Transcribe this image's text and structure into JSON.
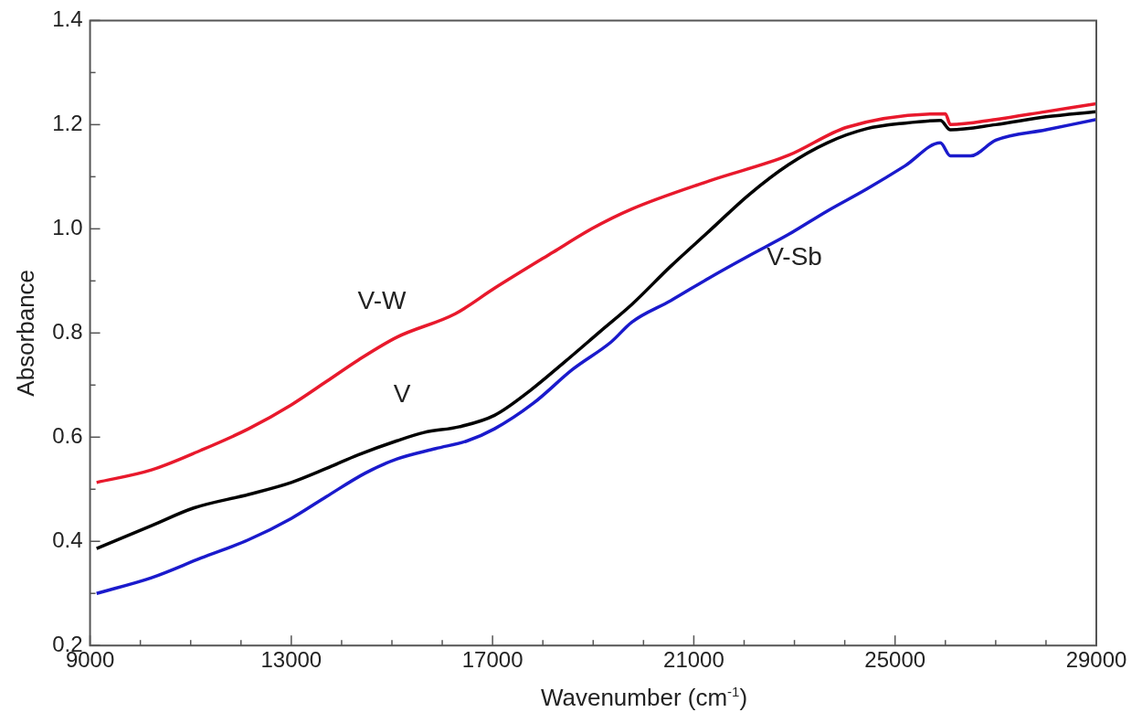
{
  "chart_data": {
    "type": "line",
    "xlabel": "Wavenumber (cm$^{-1}$)",
    "ylabel": "Absorbance",
    "xlim": [
      9000,
      29000
    ],
    "xticks": [
      9000,
      {
        "value": 10000,
        "label": null
      },
      {
        "value": 11000,
        "label": null
      },
      {
        "value": 12000,
        "label": null
      },
      13000,
      {
        "value": 14000,
        "label": null
      },
      {
        "value": 15000,
        "label": null
      },
      {
        "value": 16000,
        "label": null
      },
      17000,
      {
        "value": 18000,
        "label": null
      },
      {
        "value": 19000,
        "label": null
      },
      {
        "value": 20000,
        "label": null
      },
      21000,
      {
        "value": 22000,
        "label": null
      },
      {
        "value": 23000,
        "label": null
      },
      {
        "value": 24000,
        "label": null
      },
      25000,
      {
        "value": 26000,
        "label": null
      },
      {
        "value": 27000,
        "label": null
      },
      {
        "value": 28000,
        "label": null
      },
      29000
    ],
    "ylim": [
      0.2,
      1.4
    ],
    "yticks": [
      {
        "value": 0.2,
        "label": "0.2"
      },
      {
        "value": 0.3,
        "label": null
      },
      {
        "value": 0.4,
        "label": "0.4"
      },
      {
        "value": 0.5,
        "label": null
      },
      {
        "value": 0.6,
        "label": "0.6"
      },
      {
        "value": 0.7,
        "label": null
      },
      {
        "value": 0.8,
        "label": "0.8"
      },
      {
        "value": 0.9,
        "label": null
      },
      {
        "value": 1.0,
        "label": "1.0"
      },
      {
        "value": 1.1,
        "label": null
      },
      {
        "value": 1.2,
        "label": "1.2"
      },
      {
        "value": 1.3,
        "label": null
      },
      {
        "value": 1.4,
        "label": "1.4"
      }
    ],
    "grid": false,
    "legend": false,
    "marker": "none",
    "series": [
      {
        "color": "#e8192c",
        "x": [
          9130,
          10220,
          11210,
          12150,
          13000,
          13700,
          14330,
          15100,
          16260,
          17040,
          18200,
          18970,
          19770,
          21310,
          22880,
          24040,
          26000,
          26100,
          27000,
          28000,
          29000
        ],
        "values": [
          0.513,
          0.537,
          0.575,
          0.616,
          0.662,
          0.707,
          0.748,
          0.792,
          0.837,
          0.886,
          0.955,
          1.0,
          1.038,
          1.092,
          1.141,
          1.195,
          1.221,
          1.2,
          1.21,
          1.225,
          1.24
        ]
      },
      {
        "color": "#000000",
        "x": [
          9130,
          10220,
          11060,
          12150,
          13000,
          13700,
          14330,
          15100,
          15640,
          16340,
          17040,
          17740,
          18440,
          19140,
          19770,
          20540,
          21310,
          22090,
          22880,
          23650,
          24430,
          25200,
          25900,
          26100,
          27000,
          28000,
          29000
        ],
        "values": [
          0.386,
          0.43,
          0.464,
          0.49,
          0.513,
          0.54,
          0.566,
          0.593,
          0.609,
          0.62,
          0.642,
          0.689,
          0.745,
          0.803,
          0.855,
          0.928,
          0.996,
          1.065,
          1.123,
          1.165,
          1.192,
          1.203,
          1.208,
          1.19,
          1.2,
          1.215,
          1.225
        ]
      },
      {
        "color": "#1a1acc",
        "x": [
          9130,
          10220,
          11210,
          12150,
          13000,
          13700,
          14470,
          15100,
          15870,
          16500,
          17040,
          17810,
          18590,
          19360,
          19770,
          20540,
          21310,
          22090,
          22880,
          23650,
          24430,
          25200,
          25900,
          26100,
          26500,
          27000,
          28000,
          29000
        ],
        "values": [
          0.3,
          0.33,
          0.368,
          0.403,
          0.444,
          0.486,
          0.531,
          0.558,
          0.578,
          0.593,
          0.616,
          0.665,
          0.73,
          0.783,
          0.821,
          0.862,
          0.906,
          0.948,
          0.989,
          1.034,
          1.076,
          1.121,
          1.165,
          1.14,
          1.14,
          1.17,
          1.19,
          1.21
        ]
      }
    ],
    "annotations": [
      "V-W",
      "V",
      "V-Sb"
    ]
  }
}
